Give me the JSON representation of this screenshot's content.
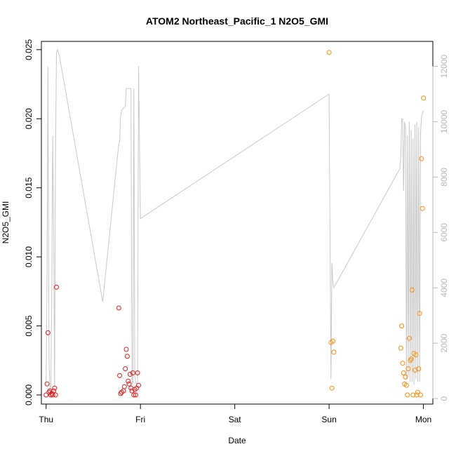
{
  "chart_data": {
    "type": "scatter",
    "title": "ATOM2 Northeast_Pacific_1 N2O5_GMI",
    "xlabel": "Date",
    "ylabel": "N2O5_GMI",
    "xlim": [
      -0.05,
      4.1
    ],
    "ylim": [
      -0.00066,
      0.0256
    ],
    "x_ticks": [
      {
        "value": 0,
        "label": "Thu"
      },
      {
        "value": 1,
        "label": "Fri"
      },
      {
        "value": 2,
        "label": "Sat"
      },
      {
        "value": 3,
        "label": "Sun"
      },
      {
        "value": 4,
        "label": "Mon"
      }
    ],
    "y_ticks": [
      {
        "value": 0.0,
        "label": "0.000"
      },
      {
        "value": 0.005,
        "label": "0.005"
      },
      {
        "value": 0.01,
        "label": "0.010"
      },
      {
        "value": 0.015,
        "label": "0.015"
      },
      {
        "value": 0.02,
        "label": "0.020"
      },
      {
        "value": 0.025,
        "label": "0.025"
      }
    ],
    "y2lim": [
      -200,
      12900
    ],
    "y2_ticks": [
      {
        "value": 0,
        "label": "0"
      },
      {
        "value": 2000,
        "label": "2000"
      },
      {
        "value": 4000,
        "label": "4000"
      },
      {
        "value": 6000,
        "label": "6000"
      },
      {
        "value": 8000,
        "label": "8000"
      },
      {
        "value": 10000,
        "label": "10000"
      },
      {
        "value": 12000,
        "label": "12000"
      }
    ],
    "grid": false,
    "series": [
      {
        "color": "#e41a1c",
        "marker": "open-circle",
        "points": [
          [
            0.0,
            0.0
          ],
          [
            0.01,
            0.0008
          ],
          [
            0.02,
            0.0045
          ],
          [
            0.03,
            0.0002
          ],
          [
            0.04,
            0.0003
          ],
          [
            0.05,
            0.0
          ],
          [
            0.06,
            0.0001
          ],
          [
            0.07,
            0.0
          ],
          [
            0.08,
            0.0003
          ],
          [
            0.09,
            0.0005
          ],
          [
            0.1,
            0.0
          ],
          [
            0.11,
            0.0078
          ],
          [
            0.77,
            0.0063
          ],
          [
            0.78,
            0.0014
          ],
          [
            0.79,
            0.0001
          ],
          [
            0.8,
            0.0002
          ],
          [
            0.82,
            0.0003
          ],
          [
            0.83,
            0.0006
          ],
          [
            0.84,
            0.0019
          ],
          [
            0.85,
            0.0033
          ],
          [
            0.86,
            0.0028
          ],
          [
            0.87,
            0.001
          ],
          [
            0.88,
            0.0008
          ],
          [
            0.89,
            0.0015
          ],
          [
            0.9,
            0.0005
          ],
          [
            0.91,
            0.0003
          ],
          [
            0.92,
            0.0016
          ],
          [
            0.93,
            0.0
          ],
          [
            0.94,
            0.0004
          ],
          [
            0.95,
            0.0
          ],
          [
            0.96,
            0.0005
          ],
          [
            0.97,
            0.0016
          ],
          [
            0.98,
            0.0007
          ]
        ]
      },
      {
        "color": "#ff8c00",
        "marker": "open-circle",
        "points": [
          [
            3.0,
            0.0248
          ],
          [
            3.02,
            0.0038
          ],
          [
            3.03,
            0.0005
          ],
          [
            3.04,
            0.0039
          ],
          [
            3.05,
            0.0031
          ],
          [
            3.76,
            0.0034
          ],
          [
            3.77,
            0.005
          ],
          [
            3.78,
            0.0023
          ],
          [
            3.79,
            0.0016
          ],
          [
            3.8,
            0.0008
          ],
          [
            3.81,
            0.0013
          ],
          [
            3.82,
            0.0007
          ],
          [
            3.83,
            0.0
          ],
          [
            3.84,
            0.0019
          ],
          [
            3.85,
            0.0041
          ],
          [
            3.86,
            0.0025
          ],
          [
            3.87,
            0.0026
          ],
          [
            3.88,
            0.0076
          ],
          [
            3.89,
            0.0
          ],
          [
            3.9,
            0.003
          ],
          [
            3.91,
            0.0018
          ],
          [
            3.92,
            0.0029
          ],
          [
            3.93,
            0.0
          ],
          [
            3.94,
            0.0002
          ],
          [
            3.95,
            0.0019
          ],
          [
            3.96,
            0.0059
          ],
          [
            3.97,
            0.0
          ],
          [
            3.98,
            0.0171
          ],
          [
            3.99,
            0.0135
          ],
          [
            4.0,
            0.0215
          ]
        ]
      }
    ],
    "secondary_series": {
      "color": "#c8c8c8",
      "type": "line",
      "axis": "right",
      "points": [
        [
          0.0,
          500
        ],
        [
          0.01,
          4500
        ],
        [
          0.02,
          12000
        ],
        [
          0.03,
          1500
        ],
        [
          0.04,
          300
        ],
        [
          0.05,
          200
        ],
        [
          0.06,
          4000
        ],
        [
          0.07,
          9500
        ],
        [
          0.08,
          6000
        ],
        [
          0.09,
          400
        ],
        [
          0.1,
          9000
        ],
        [
          0.11,
          12500
        ],
        [
          0.12,
          12600
        ],
        [
          0.14,
          12400
        ],
        [
          0.6,
          3500
        ],
        [
          0.77,
          9200
        ],
        [
          0.78,
          9300
        ],
        [
          0.79,
          10200
        ],
        [
          0.8,
          10400
        ],
        [
          0.82,
          10500
        ],
        [
          0.83,
          10500
        ],
        [
          0.84,
          10600
        ],
        [
          0.85,
          11200
        ],
        [
          0.86,
          11200
        ],
        [
          0.88,
          11200
        ],
        [
          0.9,
          11200
        ],
        [
          0.91,
          500
        ],
        [
          0.92,
          600
        ],
        [
          0.93,
          11200
        ],
        [
          0.94,
          800
        ],
        [
          0.95,
          600
        ],
        [
          0.96,
          500
        ],
        [
          0.97,
          600
        ],
        [
          0.98,
          12000
        ],
        [
          1.0,
          6500
        ],
        [
          3.0,
          11000
        ],
        [
          3.02,
          700
        ],
        [
          3.03,
          4900
        ],
        [
          3.04,
          4200
        ],
        [
          3.05,
          4000
        ],
        [
          3.75,
          8300
        ],
        [
          3.76,
          8700
        ],
        [
          3.77,
          10100
        ],
        [
          3.78,
          10100
        ],
        [
          3.79,
          7500
        ],
        [
          3.8,
          10000
        ],
        [
          3.81,
          9800
        ],
        [
          3.82,
          700
        ],
        [
          3.83,
          9500
        ],
        [
          3.84,
          800
        ],
        [
          3.85,
          10000
        ],
        [
          3.86,
          600
        ],
        [
          3.87,
          9700
        ],
        [
          3.88,
          600
        ],
        [
          3.89,
          9400
        ],
        [
          3.9,
          500
        ],
        [
          3.91,
          9900
        ],
        [
          3.92,
          700
        ],
        [
          3.93,
          10000
        ],
        [
          3.94,
          600
        ],
        [
          3.95,
          9800
        ],
        [
          3.96,
          600
        ],
        [
          3.97,
          9600
        ],
        [
          3.98,
          10200
        ],
        [
          4.0,
          10400
        ]
      ]
    }
  }
}
